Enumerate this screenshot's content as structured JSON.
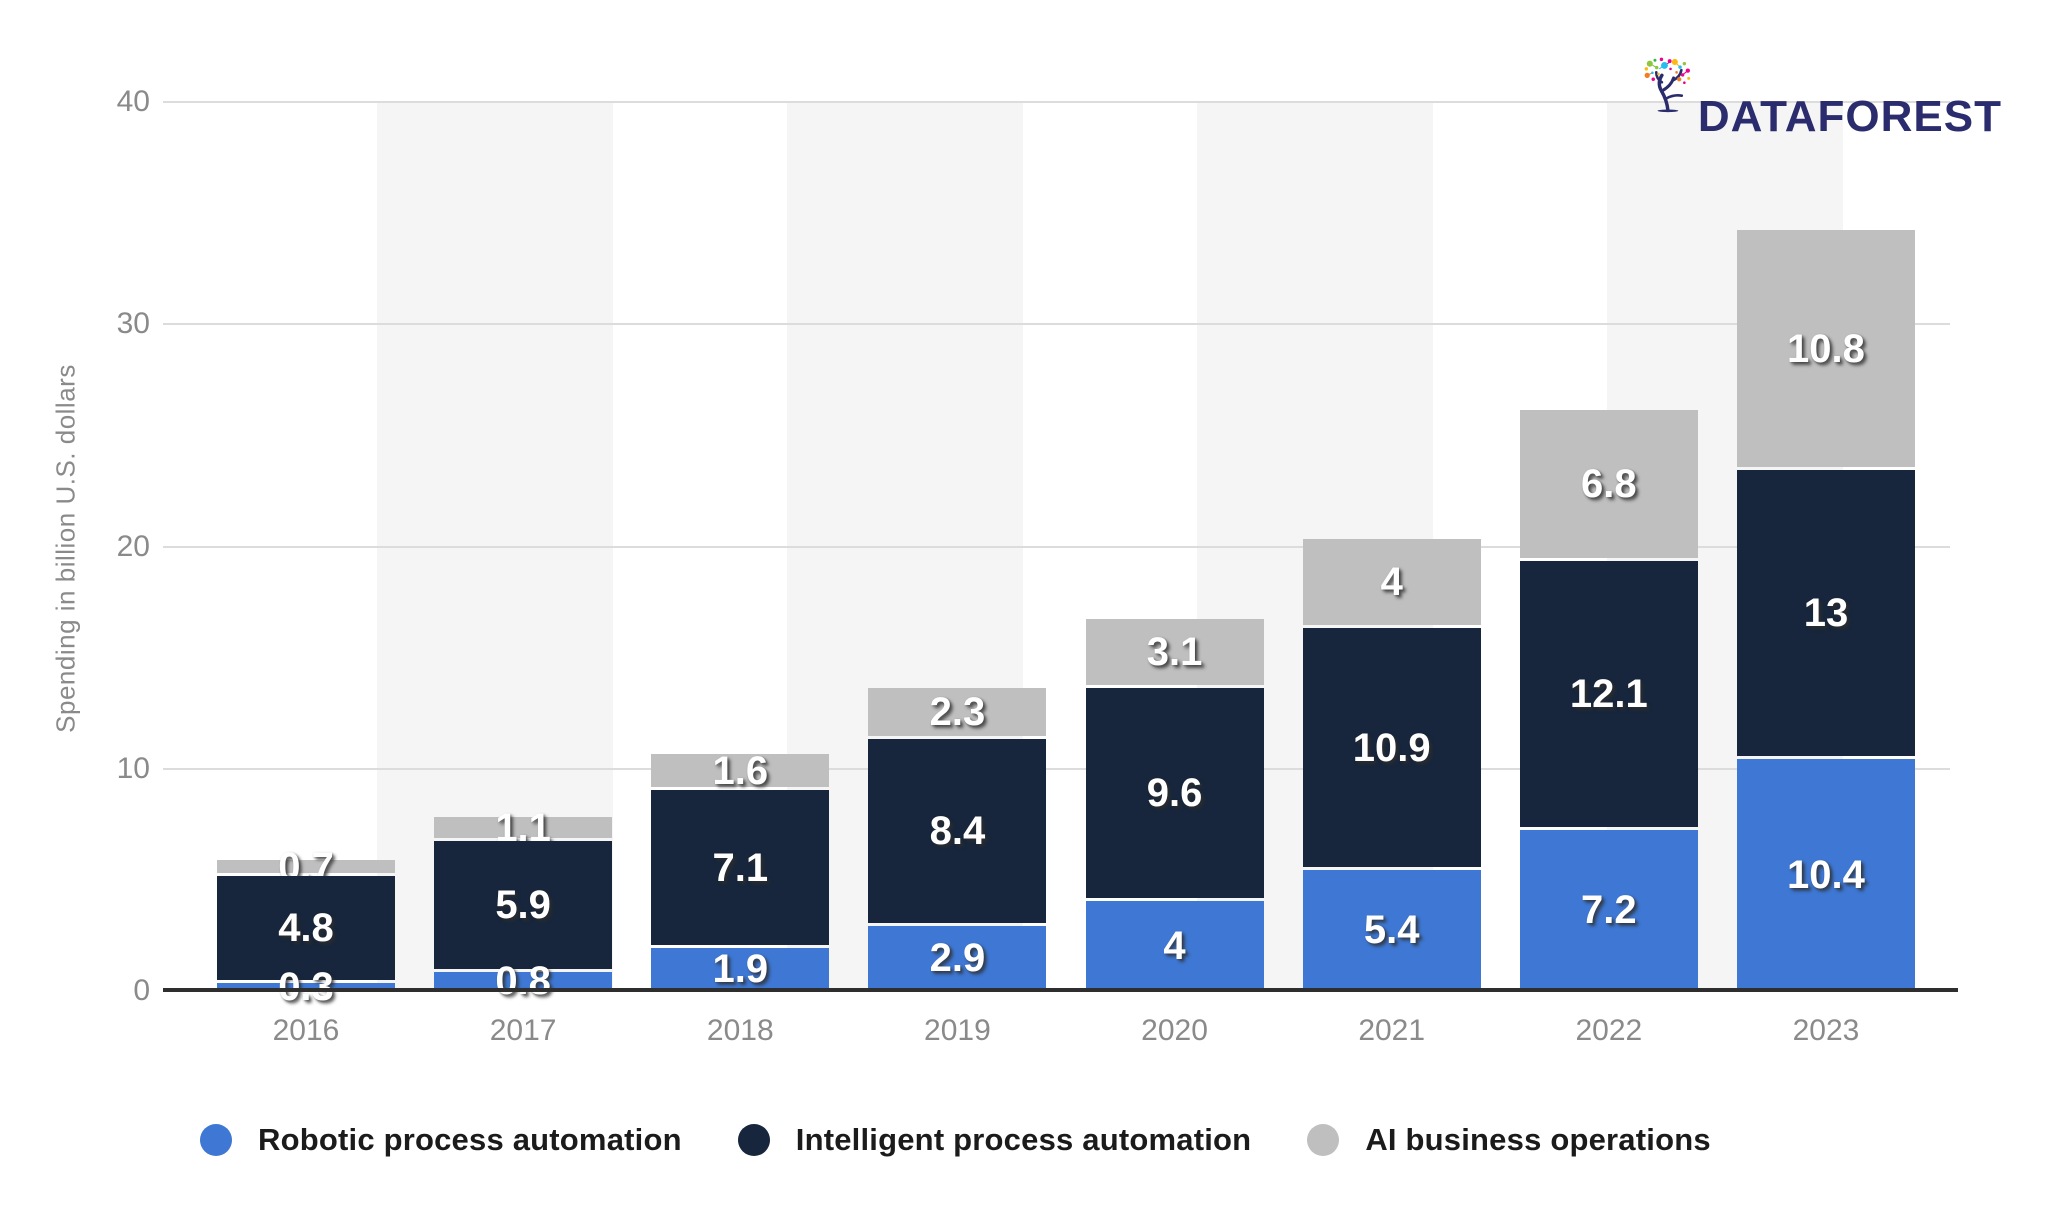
{
  "logo": {
    "name": "DATAFOREST"
  },
  "y_axis": {
    "title": "Spending in billion U.S. dollars"
  },
  "chart_data": {
    "type": "bar",
    "stacked": true,
    "categories": [
      "2016",
      "2017",
      "2018",
      "2019",
      "2020",
      "2021",
      "2022",
      "2023"
    ],
    "series": [
      {
        "name": "Robotic process automation",
        "color": "#3e78d4",
        "values": [
          0.3,
          0.8,
          1.9,
          2.9,
          4,
          5.4,
          7.2,
          10.4
        ]
      },
      {
        "name": "Intelligent process automation",
        "color": "#17263c",
        "values": [
          4.8,
          5.9,
          7.1,
          8.4,
          9.6,
          10.9,
          12.1,
          13
        ]
      },
      {
        "name": "AI business operations",
        "color": "#bfbfbf",
        "values": [
          0.7,
          1.1,
          1.6,
          2.3,
          3.1,
          4,
          6.8,
          10.8
        ]
      }
    ],
    "title": "",
    "xlabel": "",
    "ylabel": "Spending in billion U.S. dollars",
    "ylim": [
      0,
      40
    ],
    "yticks": [
      40,
      30,
      20,
      10,
      0
    ],
    "grid": "horizontal",
    "legend_position": "bottom",
    "striped_columns": [
      1,
      3,
      5,
      7
    ],
    "bar_value_labels": true
  },
  "colors": {
    "stripe": "#f5f5f6",
    "gridline": "#dcdcdc",
    "axis_line": "#2e2e2e",
    "tick_text": "#8a8a8a",
    "legend_text": "#1b1b1b",
    "value_label_text": "#ffffff",
    "logo_text": "#2b2c6e"
  }
}
